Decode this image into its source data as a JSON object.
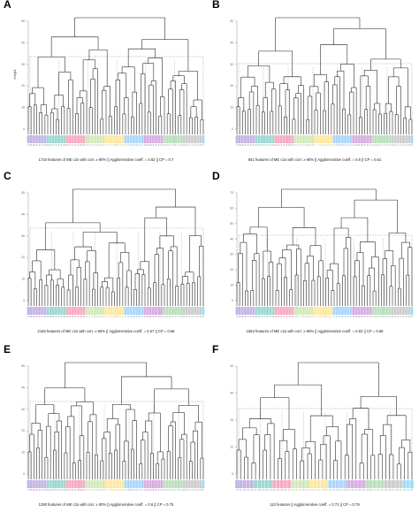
{
  "panels": [
    {
      "letter": "A",
      "caption": "1734 features of ME c2o with corr. ≥ 90% || Agglomerative coeff. = 0.62 || CP = 0.7",
      "leaves": 64,
      "ylabel": "Height",
      "ticks": [
        "0",
        "10",
        "20",
        "30",
        "40",
        "50"
      ]
    },
    {
      "letter": "B",
      "caption": "651 features of ME c2o with corr. ≥ 90% || Agglomerative coeff. = 0.6 || CP = 0.61",
      "leaves": 64,
      "ylabel": "",
      "ticks": [
        "0",
        "10",
        "20",
        "30",
        "40",
        "50"
      ]
    },
    {
      "letter": "C",
      "caption": "2165 features of ME c2o with corr. ≥ 90% || Agglomerative coeff. = 0.57 || CP = 0.56",
      "leaves": 64,
      "ylabel": "",
      "ticks": [
        "0",
        "10",
        "20",
        "30",
        "40",
        "50"
      ]
    },
    {
      "letter": "D",
      "caption": "1584 features of ME c2o with corr. ≥ 90% || Agglomerative coeff. = 0.63 || CP = 0.68",
      "leaves": 64,
      "ylabel": "",
      "ticks": [
        "0",
        "10",
        "20",
        "30",
        "40",
        "50",
        "60",
        "70"
      ]
    },
    {
      "letter": "E",
      "caption": "1280 features of ME c2o with corr. ≥ 90% || Agglomerative coeff. = 0.6 || CP = 0.75",
      "leaves": 64,
      "ylabel": "",
      "ticks": [
        "0",
        "10",
        "20",
        "30",
        "40",
        "50"
      ]
    },
    {
      "letter": "F",
      "caption": "110 features || Agglomerative coeff. = 0.71 || CP = 0.79",
      "leaves": 48,
      "ylabel": "",
      "ticks": [
        "0",
        "10",
        "20",
        "30",
        "40"
      ]
    }
  ],
  "colors": {
    "line": "#1a1a1a",
    "box": "#9a9a9a",
    "leaf_groups": [
      "#b39ddb",
      "#80cbc4",
      "#f48fb1",
      "#c5e1a5",
      "#ffe082",
      "#90caf9",
      "#ce93d8",
      "#a5d6a7",
      "#bdbdbd",
      "#81d4fa"
    ]
  }
}
